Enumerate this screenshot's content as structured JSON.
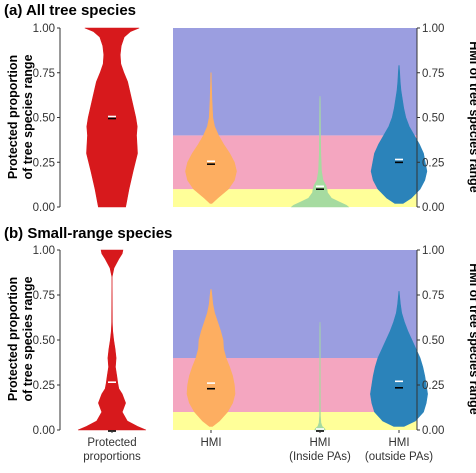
{
  "colors": {
    "protected": "#d7191c",
    "hmi": "#fdae61",
    "hmi_inside": "#a6dba0",
    "hmi_outside": "#2b83ba",
    "band_low": "#ffff99",
    "band_mid": "#f4a6c0",
    "band_high": "#9b9ee0"
  },
  "y_ticks": [
    "0.00",
    "0.25",
    "0.50",
    "0.75",
    "1.00"
  ],
  "left_ylabel_line1": "Protected proportion",
  "left_ylabel_line2": "of tree species range",
  "right_ylabel": "HMI of tree species range",
  "categories": [
    "Protected proportions",
    "HMI",
    "HMI (Inside PAs)",
    "HMI (outside PAs)"
  ],
  "category_label_lines": [
    [
      "Protected",
      "proportions"
    ],
    [
      "HMI"
    ],
    [
      "HMI",
      "(Inside PAs)"
    ],
    [
      "HMI",
      "(outside PAs)"
    ]
  ],
  "chart_data": [
    {
      "type": "violin",
      "title": "(a) All tree species",
      "categories": [
        "Protected proportions",
        "HMI",
        "HMI (Inside PAs)",
        "HMI (outside PAs)"
      ],
      "ylim": [
        0,
        1
      ],
      "background_bands": [
        {
          "from": 0,
          "to": 0.1,
          "color": "#ffff99"
        },
        {
          "from": 0.1,
          "to": 0.4,
          "color": "#f4a6c0"
        },
        {
          "from": 0.4,
          "to": 1.0,
          "color": "#9b9ee0"
        }
      ],
      "series": [
        {
          "category": "Protected proportions",
          "color": "#d7191c",
          "mean": 0.5,
          "median": 0.5,
          "profile": [
            [
              0,
              0.4
            ],
            [
              0.02,
              0.42
            ],
            [
              0.1,
              0.5
            ],
            [
              0.2,
              0.62
            ],
            [
              0.3,
              0.75
            ],
            [
              0.4,
              0.72
            ],
            [
              0.45,
              0.74
            ],
            [
              0.5,
              0.7
            ],
            [
              0.6,
              0.58
            ],
            [
              0.7,
              0.46
            ],
            [
              0.75,
              0.35
            ],
            [
              0.8,
              0.26
            ],
            [
              0.85,
              0.24
            ],
            [
              0.9,
              0.27
            ],
            [
              0.95,
              0.36
            ],
            [
              0.98,
              0.54
            ],
            [
              1.0,
              0.8
            ]
          ]
        },
        {
          "category": "HMI",
          "color": "#fdae61",
          "mean": 0.25,
          "median": 0.245,
          "profile": [
            [
              0.02,
              0.03
            ],
            [
              0.05,
              0.22
            ],
            [
              0.1,
              0.58
            ],
            [
              0.15,
              0.78
            ],
            [
              0.2,
              0.85
            ],
            [
              0.25,
              0.78
            ],
            [
              0.3,
              0.62
            ],
            [
              0.35,
              0.42
            ],
            [
              0.4,
              0.25
            ],
            [
              0.45,
              0.12
            ],
            [
              0.5,
              0.06
            ],
            [
              0.6,
              0.03
            ],
            [
              0.7,
              0.015
            ],
            [
              0.75,
              0.005
            ]
          ]
        },
        {
          "category": "HMI (Inside PAs)",
          "color": "#a6dba0",
          "mean": 0.11,
          "median": 0.105,
          "profile": [
            [
              0,
              0.95
            ],
            [
              0.01,
              0.88
            ],
            [
              0.03,
              0.62
            ],
            [
              0.05,
              0.38
            ],
            [
              0.08,
              0.25
            ],
            [
              0.1,
              0.23
            ],
            [
              0.12,
              0.2
            ],
            [
              0.15,
              0.1
            ],
            [
              0.2,
              0.05
            ],
            [
              0.3,
              0.025
            ],
            [
              0.4,
              0.018
            ],
            [
              0.5,
              0.012
            ],
            [
              0.6,
              0.008
            ],
            [
              0.62,
              0.0
            ]
          ]
        },
        {
          "category": "HMI (outside PAs)",
          "color": "#2b83ba",
          "mean": 0.26,
          "median": 0.255,
          "profile": [
            [
              0.02,
              0.12
            ],
            [
              0.05,
              0.36
            ],
            [
              0.1,
              0.62
            ],
            [
              0.15,
              0.76
            ],
            [
              0.2,
              0.82
            ],
            [
              0.25,
              0.77
            ],
            [
              0.3,
              0.72
            ],
            [
              0.35,
              0.6
            ],
            [
              0.4,
              0.45
            ],
            [
              0.45,
              0.3
            ],
            [
              0.5,
              0.2
            ],
            [
              0.55,
              0.14
            ],
            [
              0.6,
              0.1
            ],
            [
              0.65,
              0.06
            ],
            [
              0.7,
              0.035
            ],
            [
              0.75,
              0.02
            ],
            [
              0.79,
              0.005
            ]
          ]
        }
      ]
    },
    {
      "type": "violin",
      "title": "(b) Small-range species",
      "categories": [
        "Protected proportions",
        "HMI",
        "HMI (Inside PAs)",
        "HMI (outside PAs)"
      ],
      "ylim": [
        0,
        1
      ],
      "background_bands": [
        {
          "from": 0,
          "to": 0.1,
          "color": "#ffff99"
        },
        {
          "from": 0.1,
          "to": 0.4,
          "color": "#f4a6c0"
        },
        {
          "from": 0.4,
          "to": 1.0,
          "color": "#9b9ee0"
        }
      ],
      "series": [
        {
          "category": "Protected proportions",
          "color": "#d7191c",
          "mean": 0.26,
          "median": 0.0,
          "profile": [
            [
              0,
              1.0
            ],
            [
              0.02,
              0.75
            ],
            [
              0.05,
              0.45
            ],
            [
              0.1,
              0.3
            ],
            [
              0.15,
              0.4
            ],
            [
              0.2,
              0.3
            ],
            [
              0.23,
              0.2
            ],
            [
              0.26,
              0.17
            ],
            [
              0.3,
              0.14
            ],
            [
              0.35,
              0.1
            ],
            [
              0.4,
              0.12
            ],
            [
              0.45,
              0.09
            ],
            [
              0.5,
              0.05
            ],
            [
              0.55,
              0.02
            ],
            [
              0.6,
              0.008
            ],
            [
              0.8,
              0.004
            ],
            [
              0.85,
              0.004
            ],
            [
              0.9,
              0.06
            ],
            [
              0.95,
              0.2
            ],
            [
              0.98,
              0.3
            ],
            [
              1.0,
              0.32
            ]
          ]
        },
        {
          "category": "HMI",
          "color": "#fdae61",
          "mean": 0.255,
          "median": 0.235,
          "profile": [
            [
              0.02,
              0.05
            ],
            [
              0.05,
              0.28
            ],
            [
              0.1,
              0.55
            ],
            [
              0.15,
              0.72
            ],
            [
              0.2,
              0.8
            ],
            [
              0.25,
              0.78
            ],
            [
              0.3,
              0.72
            ],
            [
              0.35,
              0.62
            ],
            [
              0.4,
              0.5
            ],
            [
              0.45,
              0.42
            ],
            [
              0.5,
              0.4
            ],
            [
              0.55,
              0.32
            ],
            [
              0.6,
              0.22
            ],
            [
              0.65,
              0.12
            ],
            [
              0.7,
              0.06
            ],
            [
              0.75,
              0.03
            ],
            [
              0.78,
              0.01
            ]
          ]
        },
        {
          "category": "HMI (Inside PAs)",
          "color": "#a6dba0",
          "mean": 0.0,
          "median": 0.0,
          "profile": [
            [
              0,
              0.18
            ],
            [
              0.01,
              0.14
            ],
            [
              0.02,
              0.07
            ],
            [
              0.04,
              0.03
            ],
            [
              0.08,
              0.015
            ],
            [
              0.3,
              0.01
            ],
            [
              0.55,
              0.006
            ],
            [
              0.6,
              0.0
            ]
          ]
        },
        {
          "category": "HMI (outside PAs)",
          "color": "#2b83ba",
          "mean": 0.265,
          "median": 0.24,
          "profile": [
            [
              0.02,
              0.15
            ],
            [
              0.05,
              0.48
            ],
            [
              0.1,
              0.72
            ],
            [
              0.15,
              0.8
            ],
            [
              0.2,
              0.84
            ],
            [
              0.25,
              0.8
            ],
            [
              0.3,
              0.76
            ],
            [
              0.35,
              0.7
            ],
            [
              0.4,
              0.62
            ],
            [
              0.45,
              0.5
            ],
            [
              0.5,
              0.38
            ],
            [
              0.55,
              0.26
            ],
            [
              0.6,
              0.16
            ],
            [
              0.65,
              0.08
            ],
            [
              0.7,
              0.04
            ],
            [
              0.75,
              0.015
            ],
            [
              0.77,
              0.005
            ]
          ]
        }
      ]
    }
  ]
}
